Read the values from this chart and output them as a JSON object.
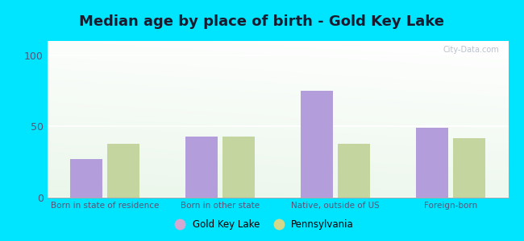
{
  "title": "Median age by place of birth - Gold Key Lake",
  "categories": [
    "Born in state of residence",
    "Born in other state",
    "Native, outside of US",
    "Foreign-born"
  ],
  "gold_key_lake": [
    27,
    43,
    75,
    49
  ],
  "pennsylvania": [
    38,
    43,
    38,
    42
  ],
  "bar_color_gold": "#b39ddb",
  "bar_color_pa": "#c5d5a0",
  "legend_gold": "Gold Key Lake",
  "legend_pa": "Pennsylvania",
  "legend_dot_gold": "#d4a8d0",
  "legend_dot_pa": "#d4d88a",
  "ylim": [
    0,
    110
  ],
  "yticks": [
    0,
    50,
    100
  ],
  "outer_background": "#00e5ff",
  "title_fontsize": 13,
  "title_color": "#1a1a2e",
  "watermark": "City-Data.com",
  "tick_label_color": "#555577",
  "xlabel_fontsize": 7.5,
  "ylabel_fontsize": 9
}
